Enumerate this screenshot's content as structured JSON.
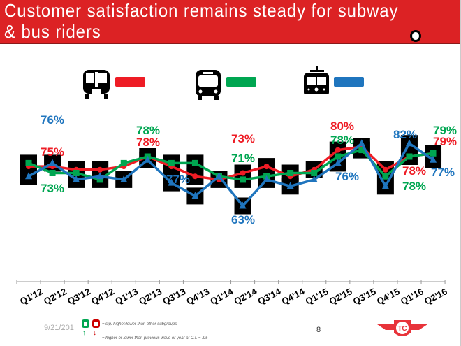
{
  "header": {
    "title": "Customer satisfaction remains steady for subway & bus riders"
  },
  "legend": [
    {
      "icon": "subway-train-icon",
      "color": "#ee1c25"
    },
    {
      "icon": "bus-icon",
      "color": "#00a651"
    },
    {
      "icon": "streetcar-icon",
      "color": "#1f75be"
    }
  ],
  "chart_data": {
    "type": "line",
    "title": "",
    "xlabel": "",
    "ylabel": "",
    "grid": false,
    "y_axis_shown": false,
    "categories": [
      "Q1'12",
      "Q2'12",
      "Q3'12",
      "Q4'12",
      "Q1'13",
      "Q2'13",
      "Q3'13",
      "Q4'13",
      "Q1'14",
      "Q2'14",
      "Q3'14",
      "Q4'14",
      "Q1'15",
      "Q2'15",
      "Q3'15",
      "Q4'15",
      "Q1'16",
      "Q2'16"
    ],
    "series": [
      {
        "icon": "subway-train-icon",
        "color": "#ee1c25",
        "marker": "circle",
        "values": [
          75,
          75,
          74,
          74,
          75,
          78,
          75,
          72,
          71,
          73,
          75,
          72,
          74,
          80,
          81,
          74,
          78,
          79
        ],
        "sig": [
          1,
          0,
          1,
          1,
          0,
          1,
          1,
          1,
          1,
          1,
          1,
          0,
          1,
          1,
          1,
          1,
          0,
          0
        ]
      },
      {
        "icon": "bus-icon",
        "color": "#00a651",
        "marker": "square",
        "values": [
          76,
          73,
          73,
          71,
          76,
          78,
          76,
          76,
          72,
          71,
          72,
          73,
          73,
          78,
          80,
          72,
          78,
          79
        ],
        "sig": [
          1,
          0,
          0,
          1,
          0,
          0,
          1,
          1,
          0,
          1,
          0,
          1,
          0,
          0,
          1,
          0,
          1,
          1
        ]
      },
      {
        "icon": "streetcar-icon",
        "color": "#1f75be",
        "marker": "triangle",
        "values": [
          72,
          76,
          71,
          72,
          71,
          77,
          70,
          66,
          72,
          63,
          71,
          69,
          71,
          76,
          82,
          69,
          82,
          77
        ],
        "sig": [
          1,
          1,
          1,
          0,
          1,
          1,
          1,
          1,
          0,
          1,
          1,
          1,
          0,
          1,
          0,
          1,
          1,
          1
        ]
      }
    ],
    "data_labels": [
      {
        "series": 2,
        "index": 1,
        "text": "76%"
      },
      {
        "series": 0,
        "index": 1,
        "text": "75%"
      },
      {
        "series": 1,
        "index": 1,
        "text": "73%"
      },
      {
        "series": 1,
        "index": 5,
        "text": "78%"
      },
      {
        "series": 0,
        "index": 5,
        "text": "78%"
      },
      {
        "series": 2,
        "index": 5,
        "text": "77%"
      },
      {
        "series": 0,
        "index": 9,
        "text": "73%"
      },
      {
        "series": 1,
        "index": 9,
        "text": "71%"
      },
      {
        "series": 2,
        "index": 9,
        "text": "63%"
      },
      {
        "series": 0,
        "index": 13,
        "text": "80%"
      },
      {
        "series": 1,
        "index": 13,
        "text": "78%"
      },
      {
        "series": 2,
        "index": 13,
        "text": "76%"
      },
      {
        "series": 2,
        "index": 16,
        "text": "82%"
      },
      {
        "series": 0,
        "index": 16,
        "text": "78%"
      },
      {
        "series": 1,
        "index": 16,
        "text": "78%"
      },
      {
        "series": 1,
        "index": 17,
        "text": "79%"
      },
      {
        "series": 0,
        "index": 17,
        "text": "79%"
      },
      {
        "series": 2,
        "index": 17,
        "text": "77%"
      }
    ]
  },
  "footer": {
    "date": "9/21/201",
    "sig_note": "= sig. higher/lower than other subgroups",
    "arrow_note": "= higher or lower than previous wave or year at C.I. = .95",
    "page_number": "8",
    "logo": "TTC"
  }
}
